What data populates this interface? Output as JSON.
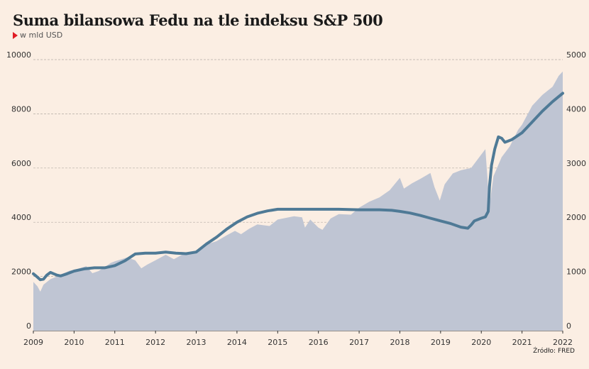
{
  "header": {
    "title": "Suma bilansowa Fedu na tle indeksu S&P 500",
    "subtitle": "w mld USD"
  },
  "source": "Źródło: FRED",
  "colors": {
    "background": "#fbeee3",
    "area_fill": "#bfc5d3",
    "line": "#4f7a96",
    "grid": "#b5aca5",
    "accent": "#e01b24"
  },
  "chart_data": {
    "type": "line",
    "grid": true,
    "legend": "none",
    "x_ticks": [
      "2009",
      "2010",
      "2011",
      "2012",
      "2013",
      "2014",
      "2015",
      "2016",
      "2017",
      "2018",
      "2019",
      "2020",
      "2021",
      "2022"
    ],
    "y_left_ticks": [
      "10000",
      "8000",
      "6000",
      "4000",
      "2000",
      "0"
    ],
    "y_right_ticks": [
      "5000",
      "4000",
      "3000",
      "2000",
      "1000",
      "0"
    ],
    "y_left_range": [
      0,
      10000
    ],
    "y_right_range": [
      0,
      5000
    ],
    "x_range": [
      2009.0,
      2022.0
    ],
    "series": [
      {
        "axis": "left",
        "style": "line",
        "points": [
          [
            2009.0,
            2100
          ],
          [
            2009.08,
            2000
          ],
          [
            2009.17,
            1880
          ],
          [
            2009.25,
            1900
          ],
          [
            2009.33,
            2050
          ],
          [
            2009.42,
            2150
          ],
          [
            2009.5,
            2100
          ],
          [
            2009.58,
            2050
          ],
          [
            2009.67,
            2020
          ],
          [
            2009.83,
            2100
          ],
          [
            2010.0,
            2200
          ],
          [
            2010.25,
            2280
          ],
          [
            2010.5,
            2320
          ],
          [
            2010.75,
            2320
          ],
          [
            2011.0,
            2400
          ],
          [
            2011.25,
            2580
          ],
          [
            2011.5,
            2830
          ],
          [
            2011.75,
            2860
          ],
          [
            2012.0,
            2860
          ],
          [
            2012.25,
            2900
          ],
          [
            2012.5,
            2860
          ],
          [
            2012.75,
            2840
          ],
          [
            2013.0,
            2900
          ],
          [
            2013.25,
            3200
          ],
          [
            2013.5,
            3450
          ],
          [
            2013.75,
            3750
          ],
          [
            2014.0,
            4000
          ],
          [
            2014.25,
            4200
          ],
          [
            2014.5,
            4330
          ],
          [
            2014.75,
            4420
          ],
          [
            2015.0,
            4480
          ],
          [
            2015.5,
            4480
          ],
          [
            2016.0,
            4480
          ],
          [
            2016.5,
            4480
          ],
          [
            2017.0,
            4460
          ],
          [
            2017.5,
            4460
          ],
          [
            2017.8,
            4440
          ],
          [
            2018.0,
            4400
          ],
          [
            2018.25,
            4340
          ],
          [
            2018.5,
            4250
          ],
          [
            2018.75,
            4150
          ],
          [
            2019.0,
            4050
          ],
          [
            2019.25,
            3950
          ],
          [
            2019.5,
            3820
          ],
          [
            2019.67,
            3780
          ],
          [
            2019.75,
            3900
          ],
          [
            2019.83,
            4050
          ],
          [
            2020.0,
            4150
          ],
          [
            2020.1,
            4200
          ],
          [
            2020.17,
            4400
          ],
          [
            2020.2,
            5300
          ],
          [
            2020.25,
            6100
          ],
          [
            2020.33,
            6700
          ],
          [
            2020.42,
            7150
          ],
          [
            2020.5,
            7100
          ],
          [
            2020.58,
            6950
          ],
          [
            2020.75,
            7050
          ],
          [
            2021.0,
            7300
          ],
          [
            2021.25,
            7700
          ],
          [
            2021.5,
            8100
          ],
          [
            2021.75,
            8450
          ],
          [
            2022.0,
            8760
          ]
        ]
      },
      {
        "axis": "right",
        "style": "area",
        "points": [
          [
            2009.0,
            900
          ],
          [
            2009.1,
            820
          ],
          [
            2009.17,
            720
          ],
          [
            2009.25,
            850
          ],
          [
            2009.42,
            950
          ],
          [
            2009.58,
            1000
          ],
          [
            2009.75,
            1060
          ],
          [
            2009.9,
            1110
          ],
          [
            2010.0,
            1120
          ],
          [
            2010.3,
            1190
          ],
          [
            2010.45,
            1060
          ],
          [
            2010.6,
            1100
          ],
          [
            2010.75,
            1170
          ],
          [
            2010.9,
            1250
          ],
          [
            2011.0,
            1280
          ],
          [
            2011.3,
            1350
          ],
          [
            2011.5,
            1300
          ],
          [
            2011.65,
            1150
          ],
          [
            2011.8,
            1220
          ],
          [
            2012.0,
            1300
          ],
          [
            2012.25,
            1400
          ],
          [
            2012.45,
            1320
          ],
          [
            2012.75,
            1440
          ],
          [
            2012.9,
            1420
          ],
          [
            2013.0,
            1480
          ],
          [
            2013.25,
            1590
          ],
          [
            2013.5,
            1650
          ],
          [
            2013.75,
            1760
          ],
          [
            2013.95,
            1840
          ],
          [
            2014.1,
            1780
          ],
          [
            2014.3,
            1880
          ],
          [
            2014.5,
            1960
          ],
          [
            2014.8,
            1930
          ],
          [
            2015.0,
            2050
          ],
          [
            2015.4,
            2110
          ],
          [
            2015.6,
            2090
          ],
          [
            2015.67,
            1900
          ],
          [
            2015.8,
            2050
          ],
          [
            2016.0,
            1900
          ],
          [
            2016.1,
            1860
          ],
          [
            2016.3,
            2070
          ],
          [
            2016.5,
            2150
          ],
          [
            2016.8,
            2140
          ],
          [
            2017.0,
            2270
          ],
          [
            2017.25,
            2380
          ],
          [
            2017.5,
            2460
          ],
          [
            2017.75,
            2590
          ],
          [
            2018.0,
            2820
          ],
          [
            2018.1,
            2620
          ],
          [
            2018.3,
            2720
          ],
          [
            2018.5,
            2800
          ],
          [
            2018.75,
            2910
          ],
          [
            2018.85,
            2650
          ],
          [
            2018.98,
            2400
          ],
          [
            2019.1,
            2700
          ],
          [
            2019.3,
            2900
          ],
          [
            2019.5,
            2960
          ],
          [
            2019.75,
            3000
          ],
          [
            2020.0,
            3250
          ],
          [
            2020.1,
            3350
          ],
          [
            2020.2,
            2300
          ],
          [
            2020.3,
            2850
          ],
          [
            2020.5,
            3200
          ],
          [
            2020.7,
            3400
          ],
          [
            2020.9,
            3700
          ],
          [
            2021.0,
            3800
          ],
          [
            2021.25,
            4150
          ],
          [
            2021.5,
            4350
          ],
          [
            2021.75,
            4500
          ],
          [
            2021.9,
            4700
          ],
          [
            2022.0,
            4780
          ]
        ]
      }
    ]
  }
}
